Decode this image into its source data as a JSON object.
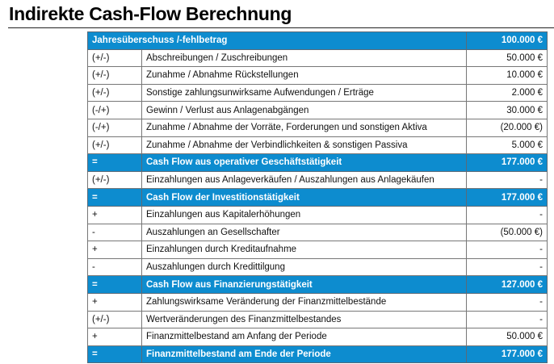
{
  "title": "Indirekte Cash-Flow Berechnung",
  "accent_color": "#0d8ccf",
  "header_row": {
    "label": "Jahresüberschuss /-fehlbetrag",
    "value": "100.000 €"
  },
  "rows": [
    {
      "sign": "(+/-)",
      "label": "Abschreibungen / Zuschreibungen",
      "value": "50.000 €",
      "hl": false
    },
    {
      "sign": "(+/-)",
      "label": "Zunahme / Abnahme Rückstellungen",
      "value": "10.000 €",
      "hl": false
    },
    {
      "sign": "(+/-)",
      "label": "Sonstige zahlungsunwirksame Aufwendungen / Erträge",
      "value": "2.000 €",
      "hl": false
    },
    {
      "sign": "(-/+)",
      "label": "Gewinn / Verlust aus Anlagenabgängen",
      "value": "30.000 €",
      "hl": false
    },
    {
      "sign": "(-/+)",
      "label": "Zunahme / Abnahme der Vorräte, Forderungen und sonstigen Aktiva",
      "value": "(20.000 €)",
      "hl": false
    },
    {
      "sign": "(+/-)",
      "label": "Zunahme / Abnahme der Verbindlichkeiten & sonstigen Passiva",
      "value": "5.000 €",
      "hl": false
    },
    {
      "sign": "=",
      "label": "Cash Flow aus operativer Geschäftstätigkeit",
      "value": "177.000 €",
      "hl": true
    },
    {
      "sign": "(+/-)",
      "label": "Einzahlungen aus Anlageverkäufen / Auszahlungen aus Anlagekäufen",
      "value": "-",
      "hl": false
    },
    {
      "sign": "=",
      "label": "Cash Flow der Investitionstätigkeit",
      "value": "177.000 €",
      "hl": true
    },
    {
      "sign": "+",
      "label": "Einzahlungen aus Kapitalerhöhungen",
      "value": "-",
      "hl": false
    },
    {
      "sign": "-",
      "label": "Auszahlungen an Gesellschafter",
      "value": "(50.000 €)",
      "hl": false
    },
    {
      "sign": "+",
      "label": "Einzahlungen durch Kreditaufnahme",
      "value": "-",
      "hl": false
    },
    {
      "sign": "-",
      "label": "Auszahlungen durch Kredittilgung",
      "value": "-",
      "hl": false
    },
    {
      "sign": "=",
      "label": "Cash Flow aus Finanzierungstätigkeit",
      "value": "127.000 €",
      "hl": true
    },
    {
      "sign": "+",
      "label": "Zahlungswirksame Veränderung der Finanzmittelbestände",
      "value": "-",
      "hl": false
    },
    {
      "sign": "(+/-)",
      "label": "Wertveränderungen des Finanzmittelbestandes",
      "value": "-",
      "hl": false
    },
    {
      "sign": "+",
      "label": "Finanzmittelbestand am Anfang der Periode",
      "value": "50.000 €",
      "hl": false
    },
    {
      "sign": "=",
      "label": "Finanzmittelbestand am Ende der Periode",
      "value": "177.000 €",
      "hl": true
    }
  ]
}
